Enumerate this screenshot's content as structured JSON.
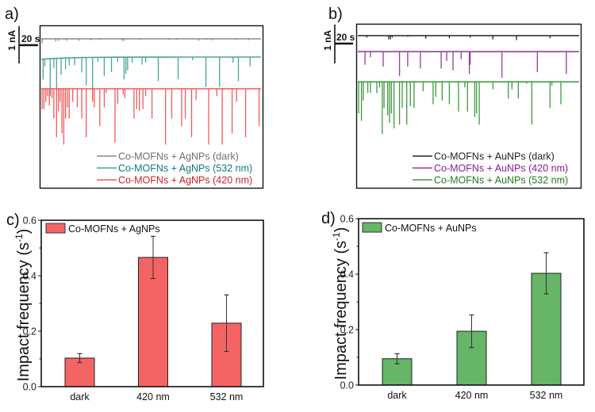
{
  "figure": {
    "panels": {
      "a": {
        "label": "a)"
      },
      "b": {
        "label": "b)"
      },
      "c": {
        "label": "c)"
      },
      "d": {
        "label": "d)"
      }
    },
    "scale_bar": {
      "current_label": "1 nA",
      "time_label": "20 s"
    }
  },
  "chart_data": [
    {
      "id": "a",
      "type": "line",
      "title": "",
      "xlabel": "",
      "ylabel": "",
      "x_range_s": [
        0,
        245
      ],
      "scale_bar": {
        "current_nA": 1,
        "time_s": 20
      },
      "legend_position": "bottom-right",
      "series": [
        {
          "name": "Co-MOFNs + AgNPs (dark)",
          "color": "#8a8a8a",
          "text_color": "#6f6f6f",
          "baseline_offset_nA": 0.0,
          "drift": 0,
          "spikes": [
            [
              1,
              0.12
            ],
            [
              16,
              0.07
            ],
            [
              19,
              0.06
            ],
            [
              28,
              0.05
            ],
            [
              42,
              0.05
            ],
            [
              55,
              0.04
            ],
            [
              65,
              0.03
            ],
            [
              90,
              0.05
            ],
            [
              92,
              0.06
            ],
            [
              110,
              0.03
            ],
            [
              142,
              0.03
            ],
            [
              150,
              0.03
            ],
            [
              175,
              0.05
            ],
            [
              183,
              0.03
            ],
            [
              190,
              0.04
            ],
            [
              216,
              0.03
            ],
            [
              230,
              0.04
            ]
          ]
        },
        {
          "name": "Co-MOFNs + AgNPs (532 nm)",
          "color": "#4aa39b",
          "text_color": "#0f7a74",
          "baseline_offset_nA": 0.49,
          "drift": 0.06,
          "spikes": [
            [
              2,
              0.55
            ],
            [
              4,
              0.2
            ],
            [
              10,
              1.0
            ],
            [
              14,
              0.25
            ],
            [
              17,
              0.9
            ],
            [
              22,
              0.45
            ],
            [
              27,
              0.3
            ],
            [
              31,
              0.2
            ],
            [
              37,
              0.2
            ],
            [
              45,
              0.4
            ],
            [
              50,
              0.75
            ],
            [
              57,
              1.0
            ],
            [
              63,
              0.12
            ],
            [
              70,
              0.5
            ],
            [
              78,
              0.4
            ],
            [
              85,
              0.12
            ],
            [
              92,
              0.6
            ],
            [
              94,
              0.45
            ],
            [
              96,
              0.35
            ],
            [
              101,
              0.15
            ],
            [
              112,
              0.2
            ],
            [
              116,
              0.15
            ],
            [
              130,
              0.65
            ],
            [
              152,
              0.6
            ],
            [
              168,
              0.08
            ],
            [
              183,
              0.8
            ],
            [
              198,
              0.8
            ],
            [
              213,
              0.15
            ],
            [
              219,
              0.65
            ],
            [
              232,
              0.25
            ]
          ]
        },
        {
          "name": "Co-MOFNs + AgNPs (420 nm)",
          "color": "#ef5a5a",
          "text_color": "#c8202a",
          "baseline_offset_nA": 1.34,
          "drift": 0,
          "spikes": [
            [
              1,
              0.55
            ],
            [
              3,
              0.55
            ],
            [
              5,
              0.35
            ],
            [
              7,
              0.2
            ],
            [
              9,
              0.45
            ],
            [
              12,
              0.25
            ],
            [
              14,
              0.8
            ],
            [
              17,
              1.3
            ],
            [
              19,
              0.6
            ],
            [
              21,
              0.35
            ],
            [
              23,
              1.2
            ],
            [
              25,
              1.5
            ],
            [
              27,
              0.8
            ],
            [
              29,
              0.5
            ],
            [
              31,
              0.8
            ],
            [
              35,
              0.35
            ],
            [
              40,
              0.5
            ],
            [
              45,
              0.8
            ],
            [
              50,
              1.3
            ],
            [
              57,
              0.35
            ],
            [
              59,
              0.5
            ],
            [
              65,
              1.0
            ],
            [
              70,
              0.5
            ],
            [
              72,
              0.12
            ],
            [
              82,
              1.45
            ],
            [
              85,
              0.4
            ],
            [
              91,
              0.15
            ],
            [
              93,
              0.25
            ],
            [
              103,
              0.8
            ],
            [
              106,
              0.55
            ],
            [
              109,
              0.6
            ],
            [
              113,
              0.55
            ],
            [
              116,
              0.2
            ],
            [
              123,
              0.8
            ],
            [
              138,
              1.5
            ],
            [
              145,
              0.8
            ],
            [
              156,
              1.0
            ],
            [
              160,
              0.8
            ],
            [
              167,
              1.3
            ],
            [
              172,
              0.3
            ],
            [
              186,
              1.5
            ],
            [
              195,
              0.2
            ],
            [
              201,
              1.5
            ],
            [
              212,
              1.2
            ],
            [
              217,
              0.35
            ],
            [
              227,
              1.3
            ],
            [
              242,
              1.0
            ],
            [
              246,
              0.8
            ],
            [
              250,
              0.35
            ]
          ]
        }
      ]
    },
    {
      "id": "b",
      "type": "line",
      "title": "",
      "xlabel": "",
      "ylabel": "",
      "x_range_s": [
        0,
        245
      ],
      "scale_bar": {
        "current_nA": 1,
        "time_s": 20
      },
      "legend_position": "bottom-right",
      "series": [
        {
          "name": "Co-MOFNs + AuNPs (dark)",
          "color": "#222222",
          "text_color": "#222222",
          "baseline_offset_nA": 0.0,
          "drift": 0,
          "spikes": [
            [
              10,
              0.05
            ],
            [
              34,
              0.1
            ],
            [
              36,
              0.1
            ],
            [
              38,
              0.05
            ],
            [
              55,
              0.03
            ],
            [
              75,
              0.08
            ],
            [
              101,
              0.07
            ],
            [
              124,
              0.05
            ],
            [
              149,
              0.1
            ],
            [
              175,
              0.12
            ],
            [
              212,
              0.07
            ]
          ]
        },
        {
          "name": "Co-MOFNs + AuNPs (420 nm)",
          "color": "#9b3a9b",
          "text_color": "#8b1a8b",
          "baseline_offset_nA": 0.43,
          "drift": 0,
          "spikes": [
            [
              8,
              0.35
            ],
            [
              14,
              0.15
            ],
            [
              28,
              0.4
            ],
            [
              46,
              0.65
            ],
            [
              55,
              0.4
            ],
            [
              69,
              0.45
            ],
            [
              92,
              0.45
            ],
            [
              98,
              0.25
            ],
            [
              105,
              0.5
            ],
            [
              114,
              0.2
            ],
            [
              123,
              0.6
            ],
            [
              124,
              0.35
            ],
            [
              159,
              0.7
            ],
            [
              198,
              0.55
            ],
            [
              230,
              0.6
            ]
          ]
        },
        {
          "name": "Co-MOFNs + AuNPs (532 nm)",
          "color": "#3e9a3e",
          "text_color": "#1f7a1f",
          "baseline_offset_nA": 1.24,
          "drift": 0,
          "spikes": [
            [
              1,
              0.85
            ],
            [
              4,
              1.05
            ],
            [
              6,
              0.5
            ],
            [
              11,
              0.3
            ],
            [
              14,
              0.3
            ],
            [
              21,
              0.3
            ],
            [
              24,
              0.15
            ],
            [
              27,
              1.4
            ],
            [
              29,
              0.7
            ],
            [
              33,
              0.9
            ],
            [
              35,
              1.1
            ],
            [
              37,
              0.85
            ],
            [
              40,
              1.25
            ],
            [
              46,
              1.15
            ],
            [
              49,
              0.7
            ],
            [
              54,
              1.15
            ],
            [
              58,
              0.65
            ],
            [
              62,
              0.7
            ],
            [
              72,
              0.25
            ],
            [
              83,
              0.6
            ],
            [
              86,
              0.4
            ],
            [
              93,
              0.5
            ],
            [
              101,
              0.6
            ],
            [
              111,
              0.8
            ],
            [
              118,
              0.15
            ],
            [
              121,
              0.8
            ],
            [
              129,
              0.95
            ],
            [
              131,
              0.85
            ],
            [
              134,
              1.15
            ],
            [
              149,
              0.2
            ],
            [
              166,
              0.45
            ],
            [
              170,
              0.2
            ],
            [
              177,
              0.45
            ],
            [
              186,
              0.05
            ],
            [
              192,
              1.15
            ],
            [
              212,
              0.7
            ],
            [
              214,
              0.1
            ],
            [
              224,
              0.6
            ]
          ]
        }
      ]
    },
    {
      "id": "c",
      "type": "bar",
      "title": "",
      "xlabel": "",
      "ylabel": "Impact frequency (s⁻¹)",
      "ylabel_main": "Impact frequency (s",
      "ylabel_sup": "-1",
      "ylabel_close": ")",
      "ylim": [
        0,
        0.6
      ],
      "yticks": [
        0.0,
        0.2,
        0.4,
        0.6
      ],
      "ytick_labels": [
        "0.0",
        "0.2",
        "0.4",
        "0.6"
      ],
      "categories": [
        "dark",
        "420 nm",
        "532 nm"
      ],
      "series": [
        {
          "name": "Co-MOFNs + AgNPs",
          "color": "#f46464",
          "values": [
            0.103,
            0.466,
            0.229
          ],
          "error": [
            0.016,
            0.076,
            0.102
          ]
        }
      ],
      "legend_position": "top-left",
      "grid": false
    },
    {
      "id": "d",
      "type": "bar",
      "title": "",
      "xlabel": "",
      "ylabel": "Impact frequency (s⁻¹)",
      "ylabel_main": "Impact frequency (s",
      "ylabel_sup": "-1",
      "ylabel_close": ")",
      "ylim": [
        0,
        0.6
      ],
      "yticks": [
        0.0,
        0.2,
        0.4,
        0.6
      ],
      "ytick_labels": [
        "0.0",
        "0.2",
        "0.4",
        "0.6"
      ],
      "categories": [
        "dark",
        "420 nm",
        "532 nm"
      ],
      "series": [
        {
          "name": "Co-MOFNs + AuNPs",
          "color": "#67b567",
          "values": [
            0.095,
            0.194,
            0.403
          ],
          "error": [
            0.018,
            0.059,
            0.074
          ]
        }
      ],
      "legend_position": "top-left",
      "grid": false
    }
  ]
}
